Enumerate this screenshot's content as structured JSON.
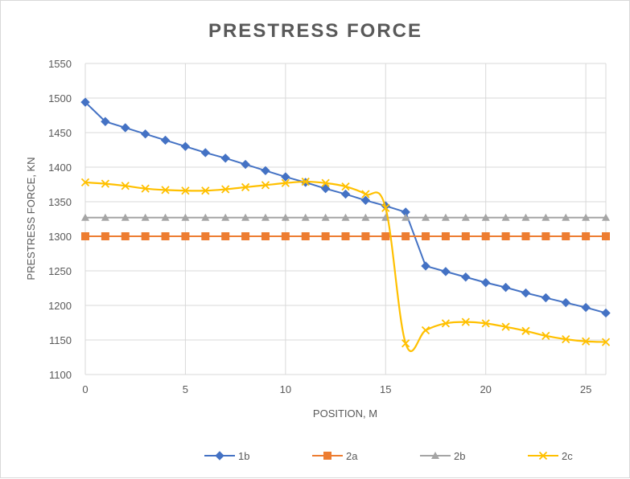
{
  "chart_data": {
    "type": "line",
    "title": "PRESTRESS FORCE",
    "xlabel": "POSITION, M",
    "ylabel": "PRESTRESS FORCE, KN",
    "xlim": [
      0,
      26
    ],
    "ylim": [
      1100,
      1550
    ],
    "x_ticks": [
      "0",
      "5",
      "10",
      "15",
      "20",
      "25"
    ],
    "y_ticks": [
      "1100",
      "1150",
      "1200",
      "1250",
      "1300",
      "1350",
      "1400",
      "1450",
      "1500",
      "1550"
    ],
    "grid": true,
    "legend_position": "bottom",
    "x": [
      0,
      1,
      2,
      3,
      4,
      5,
      6,
      7,
      8,
      9,
      10,
      11,
      12,
      13,
      14,
      15,
      16,
      17,
      18,
      19,
      20,
      21,
      22,
      23,
      24,
      25,
      26
    ],
    "series": [
      {
        "name": "1b",
        "color": "#4472c4",
        "marker": "diamond",
        "values": [
          1494,
          1466,
          1457,
          1448,
          1439,
          1430,
          1421,
          1413,
          1404,
          1395,
          1386,
          1378,
          1369,
          1361,
          1352,
          1344,
          1335,
          1257,
          1249,
          1241,
          1233,
          1226,
          1218,
          1211,
          1204,
          1197,
          1189
        ]
      },
      {
        "name": "2a",
        "color": "#ed7d31",
        "marker": "square",
        "values": [
          1300,
          1300,
          1300,
          1300,
          1300,
          1300,
          1300,
          1300,
          1300,
          1300,
          1300,
          1300,
          1300,
          1300,
          1300,
          1300,
          1300,
          1300,
          1300,
          1300,
          1300,
          1300,
          1300,
          1300,
          1300,
          1300,
          1300
        ]
      },
      {
        "name": "2b",
        "color": "#a5a5a5",
        "marker": "triangle",
        "values": [
          1327,
          1327,
          1327,
          1327,
          1327,
          1327,
          1327,
          1327,
          1327,
          1327,
          1327,
          1327,
          1327,
          1327,
          1327,
          1327,
          1327,
          1327,
          1327,
          1327,
          1327,
          1327,
          1327,
          1327,
          1327,
          1327,
          1327
        ]
      },
      {
        "name": "2c",
        "color": "#ffc000",
        "marker": "x",
        "values": [
          1378,
          1376,
          1373,
          1369,
          1367,
          1366,
          1366,
          1368,
          1371,
          1374,
          1377,
          1379,
          1377,
          1372,
          1361,
          1341,
          1145,
          1164,
          1174,
          1176,
          1174,
          1169,
          1163,
          1156,
          1151,
          1148,
          1147
        ]
      }
    ]
  }
}
